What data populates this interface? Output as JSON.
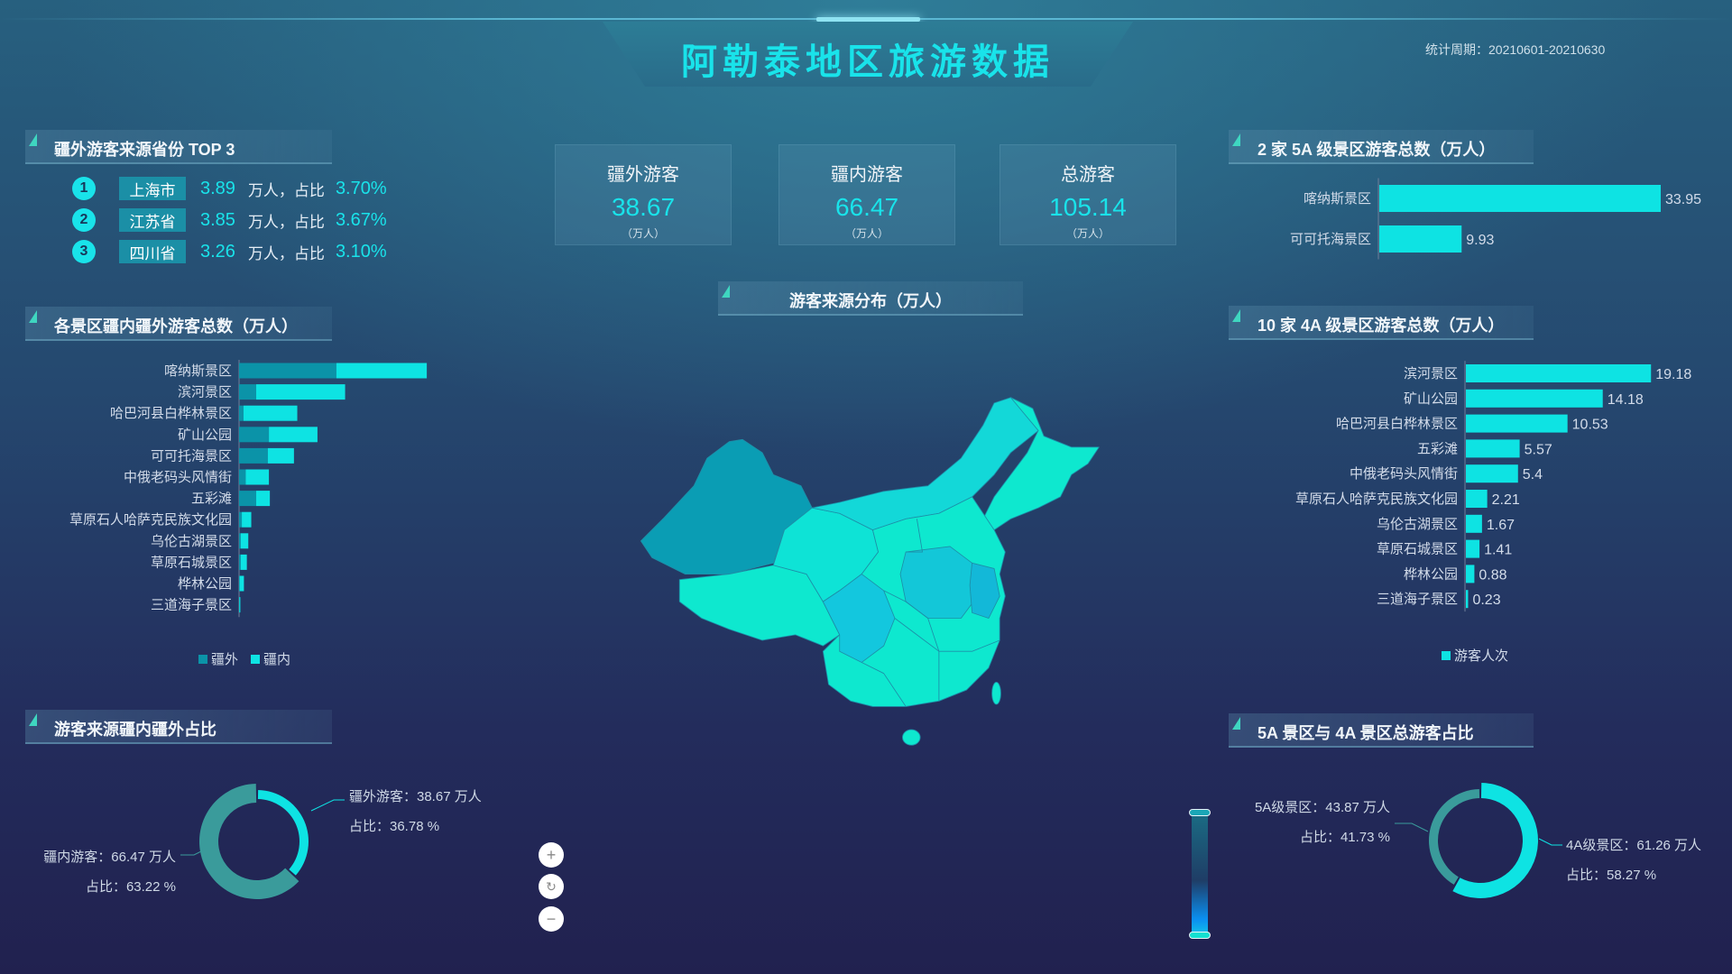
{
  "header": {
    "title": "阿勒泰地区旅游数据",
    "period": "统计周期：20210601-20210630"
  },
  "top3": {
    "title": "疆外游客来源省份 TOP 3",
    "unit_text": "万人，占比",
    "rows": [
      {
        "rank": "1",
        "province": "上海市",
        "value": "3.89",
        "share": "3.70%"
      },
      {
        "rank": "2",
        "province": "江苏省",
        "value": "3.85",
        "share": "3.67%"
      },
      {
        "rank": "3",
        "province": "四川省",
        "value": "3.26",
        "share": "3.10%"
      }
    ]
  },
  "kpis": [
    {
      "label": "疆外游客",
      "value": "38.67",
      "unit": "（万人）"
    },
    {
      "label": "疆内游客",
      "value": "66.47",
      "unit": "（万人）"
    },
    {
      "label": "总游客",
      "value": "105.14",
      "unit": "（万人）"
    }
  ],
  "map": {
    "title": "游客来源分布（万人）",
    "controls": {
      "zoom_in": "+",
      "reset": "↻",
      "zoom_out": "−"
    },
    "colors": {
      "high": "#0aa3b8",
      "mid": "#13c7d8",
      "low": "#0ee8cf"
    }
  },
  "chart_data": [
    {
      "type": "bar",
      "orientation": "horizontal",
      "stacked": true,
      "title": "各景区疆内疆外游客总数（万人）",
      "legend_position": "bottom",
      "categories": [
        "喀纳斯景区",
        "滨河景区",
        "哈巴河县白桦林景区",
        "矿山公园",
        "可可托海景区",
        "中俄老码头风情街",
        "五彩滩",
        "草原石人哈萨克民族文化园",
        "乌伦古湖景区",
        "草原石城景区",
        "桦林公园",
        "三道海子景区"
      ],
      "series": [
        {
          "name": "疆外",
          "color": "#0b93a8",
          "values": [
            17.6,
            3.1,
            0.8,
            5.4,
            5.2,
            1.2,
            3.1,
            0.5,
            0.3,
            0.3,
            0.1,
            0.05
          ]
        },
        {
          "name": "疆内",
          "color": "#0ee3e3",
          "values": [
            16.35,
            16.08,
            9.73,
            8.78,
            4.73,
            4.2,
            2.47,
            1.71,
            1.37,
            1.11,
            0.78,
            0.18
          ]
        }
      ]
    },
    {
      "type": "bar",
      "orientation": "horizontal",
      "title": "2 家 5A 级景区游客总数（万人）",
      "color": "#0ee3e3",
      "categories": [
        "喀纳斯景区",
        "可可托海景区"
      ],
      "values": [
        33.95,
        9.93
      ]
    },
    {
      "type": "bar",
      "orientation": "horizontal",
      "title": "10 家 4A 级景区游客总数（万人）",
      "color": "#0ee3e3",
      "legend_position": "bottom",
      "series_name": "游客人次",
      "categories": [
        "滨河景区",
        "矿山公园",
        "哈巴河县白桦林景区",
        "五彩滩",
        "中俄老码头风情街",
        "草原石人哈萨克民族文化园",
        "乌伦古湖景区",
        "草原石城景区",
        "桦林公园",
        "三道海子景区"
      ],
      "values": [
        19.18,
        14.18,
        10.53,
        5.57,
        5.4,
        2.21,
        1.67,
        1.41,
        0.88,
        0.23
      ]
    },
    {
      "type": "pie",
      "donut": true,
      "title": "游客来源疆内疆外占比",
      "slices": [
        {
          "name": "疆外游客",
          "value": 38.67,
          "share": 36.78,
          "color": "#0ee3e3",
          "label": "疆外游客：38.67 万人",
          "share_label": "占比：36.78 %"
        },
        {
          "name": "疆内游客",
          "value": 66.47,
          "share": 63.22,
          "color": "#3a9b9b",
          "label": "疆内游客：66.47 万人",
          "share_label": "占比：63.22 %"
        }
      ]
    },
    {
      "type": "pie",
      "donut": true,
      "title": "5A 景区与 4A 景区总游客占比",
      "slices": [
        {
          "name": "4A级景区",
          "value": 61.26,
          "share": 58.27,
          "color": "#0ee3e3",
          "label": "4A级景区：61.26 万人",
          "share_label": "占比：58.27 %"
        },
        {
          "name": "5A级景区",
          "value": 43.87,
          "share": 41.73,
          "color": "#3a9b9b",
          "label": "5A级景区：43.87 万人",
          "share_label": "占比：41.73 %"
        }
      ]
    }
  ]
}
